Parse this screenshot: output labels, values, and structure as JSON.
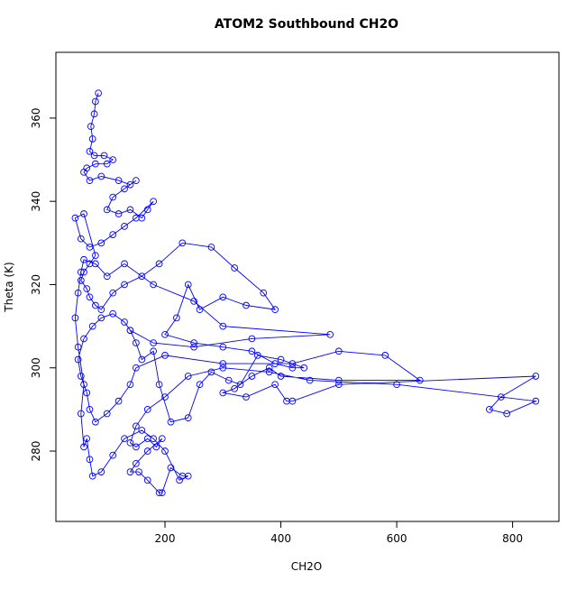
{
  "chart_data": {
    "type": "line",
    "marker": "circle",
    "title": "ATOM2 Southbound CH2O",
    "x_label": "CH2O",
    "y_label": "Theta (K)",
    "color": "#0000ff",
    "x": [
      85,
      80,
      78,
      72,
      75,
      70,
      78,
      95,
      110,
      100,
      80,
      65,
      60,
      70,
      90,
      120,
      140,
      150,
      130,
      110,
      100,
      120,
      140,
      160,
      170,
      180,
      150,
      130,
      110,
      90,
      70,
      55,
      45,
      60,
      80,
      70,
      60,
      55,
      65,
      70,
      80,
      90,
      110,
      130,
      160,
      190,
      230,
      280,
      320,
      370,
      390,
      340,
      300,
      260,
      240,
      220,
      200,
      250,
      300,
      350,
      390,
      420,
      440,
      400,
      360,
      330,
      310,
      280,
      260,
      240,
      210,
      190,
      180,
      160,
      150,
      140,
      130,
      110,
      90,
      75,
      60,
      50,
      55,
      65,
      70,
      80,
      100,
      120,
      140,
      150,
      200,
      300,
      420,
      500,
      580,
      640,
      500,
      400,
      380,
      350,
      320,
      300,
      340,
      390,
      410,
      420,
      500,
      840,
      780,
      760,
      790,
      840,
      600,
      450,
      380,
      300,
      240,
      200,
      170,
      150,
      140,
      150,
      170,
      185,
      195,
      170,
      150,
      140,
      155,
      170,
      190,
      195,
      210,
      230,
      240,
      225,
      200,
      180,
      160,
      130,
      110,
      90,
      75,
      70,
      65,
      60,
      55,
      60,
      50,
      45,
      50,
      55,
      60,
      80,
      100,
      130,
      180,
      250,
      300,
      485,
      350,
      250,
      180,
      140
    ],
    "values": [
      366,
      364,
      361,
      358,
      355,
      352,
      351,
      351,
      350,
      349,
      349,
      348,
      347,
      345,
      346,
      345,
      344,
      345,
      343,
      341,
      338,
      337,
      338,
      336,
      338,
      340,
      336,
      334,
      332,
      330,
      329,
      331,
      336,
      337,
      327,
      325,
      323,
      321,
      319,
      317,
      315,
      314,
      318,
      320,
      322,
      325,
      330,
      329,
      324,
      318,
      314,
      315,
      317,
      314,
      320,
      312,
      308,
      306,
      305,
      304,
      301,
      300,
      300,
      302,
      303,
      296,
      297,
      299,
      296,
      288,
      287,
      296,
      304,
      302,
      306,
      309,
      311,
      313,
      312,
      310,
      307,
      302,
      298,
      294,
      290,
      287,
      289,
      292,
      296,
      300,
      303,
      301,
      301,
      304,
      303,
      297,
      297,
      298,
      300,
      298,
      295,
      294,
      293,
      296,
      292,
      292,
      296,
      298,
      293,
      290,
      289,
      292,
      296,
      297,
      299,
      300,
      298,
      293,
      290,
      286,
      282,
      281,
      283,
      281,
      283,
      280,
      277,
      275,
      275,
      273,
      270,
      270,
      276,
      274,
      274,
      273,
      280,
      283,
      285,
      283,
      279,
      275,
      274,
      278,
      283,
      281,
      289,
      296,
      305,
      312,
      318,
      323,
      326,
      325,
      322,
      325,
      320,
      316,
      310,
      308,
      307,
      305,
      306,
      309
    ],
    "xlim": [
      11.7,
      880
    ],
    "xticks": [
      200,
      400,
      600,
      800
    ],
    "ylim": [
      263.1,
      375.8
    ],
    "yticks": [
      280,
      300,
      320,
      340,
      360
    ]
  }
}
